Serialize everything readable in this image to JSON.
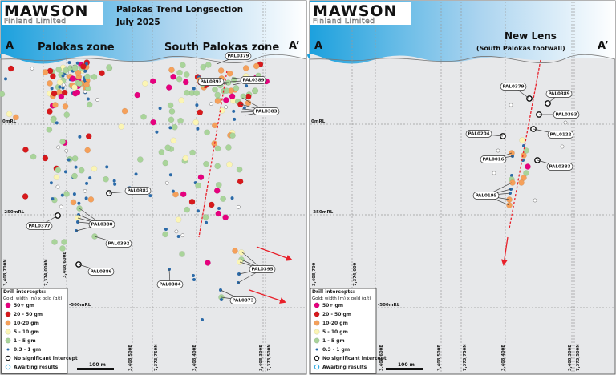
{
  "logo": {
    "brand": "MAWSON",
    "subtitle": "Finland Limited"
  },
  "title": {
    "line1": "Palokas Trend Longsection",
    "line2": "July 2025"
  },
  "colors": {
    "grade_50_plus": "#e6007e",
    "grade_20_50": "#d7191c",
    "grade_10_20": "#f5a05a",
    "grade_5_10": "#fbf5b4",
    "grade_1_5": "#a9d49a",
    "grade_0_3_1": "#2b6aa8",
    "no_intercept": "#222222",
    "awaiting": "#29a8e0",
    "trend_line": "#e8202a",
    "header_gradient_start": "#1aa0dd",
    "header_gradient_end": "#ffffff",
    "section_bg": "#e7e8ea"
  },
  "left_panel": {
    "section_start": "A",
    "section_end": "A’",
    "zone_1": "Palokas zone",
    "zone_2": "South Palokas zone",
    "rl_labels": [
      "0mRL",
      "-250mRL",
      "-500mRL"
    ],
    "coord_labels_left": [
      "3,408,700N",
      "7,374,000N",
      "3,408,600E"
    ],
    "coord_labels_bottom": [
      "3,408,500E",
      "7,373,750N",
      "3,408,400E",
      "3,408,300E",
      "7,373,500N"
    ],
    "holes": [
      "PAL0379",
      "PAL0393",
      "PAL0389",
      "PAL0383",
      "PAL0382",
      "PAL0377",
      "PAL0380",
      "PAL0392",
      "PAL0386",
      "PAL0384",
      "PAL0395",
      "PAL0373"
    ]
  },
  "right_panel": {
    "section_start": "A",
    "section_end": "A’",
    "zone_title": "New Lens",
    "zone_subtitle": "(South Palokas footwall)",
    "rl_labels": [
      "0mRL",
      "-250mRL",
      "-500mRL"
    ],
    "coord_labels_left": [
      "3,408,700",
      "7,374,000"
    ],
    "coord_labels_bottom": [
      "3,408,600E",
      "3,408,500E",
      "7,373,750N",
      "3,408,400E",
      "3,408,300E",
      "7,373,500N"
    ],
    "holes": [
      "PAL0379",
      "PAL0389",
      "PAL0393",
      "PAL0122",
      "PAL0204",
      "PAL0016",
      "PAL0383",
      "PAL0195"
    ]
  },
  "legend": {
    "title": "Drill intercepts:",
    "subtitle": "Gold: width (m) x gold (g/t)",
    "items": [
      {
        "label": "50+ gm",
        "symbol": "grade_50_plus"
      },
      {
        "label": "20 - 50 gm",
        "symbol": "grade_20_50"
      },
      {
        "label": "10-20 gm",
        "symbol": "grade_10_20"
      },
      {
        "label": "5 - 10 gm",
        "symbol": "grade_5_10"
      },
      {
        "label": "1 - 5 gm",
        "symbol": "grade_1_5"
      },
      {
        "label": "0.3 - 1 gm",
        "symbol": "grade_0_3_1"
      },
      {
        "label": "No significant intercept",
        "symbol": "no_intercept"
      },
      {
        "label": "Awaiting results",
        "symbol": "awaiting"
      }
    ]
  },
  "scale_bar": {
    "label": "100 m"
  }
}
